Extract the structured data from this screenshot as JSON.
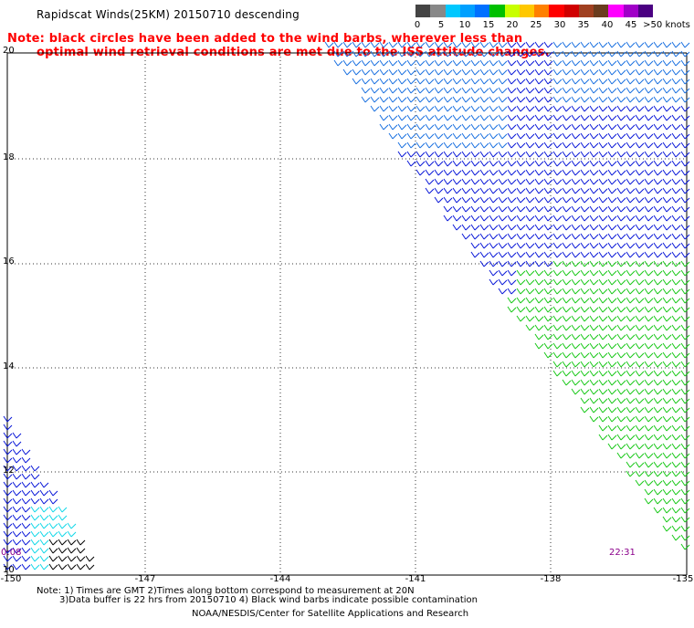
{
  "title": "Rapidscat Winds(25KM) 20150710 descending",
  "warning": {
    "line1": "Note: black circles have been added to the wind barbs, wherever less than",
    "line2": "optimal wind retrieval conditions are met due to the ISS attitude changes."
  },
  "legend": {
    "unit_label": ">50 knots",
    "ticks": [
      "0",
      "5",
      "10",
      "15",
      "20",
      "25",
      "30",
      "35",
      "40",
      "45"
    ],
    "colors": [
      "#444444",
      "#888888",
      "#00c8ff",
      "#00a0ff",
      "#0070ff",
      "#00c000",
      "#c8ff00",
      "#ffc800",
      "#ff8000",
      "#ff0000",
      "#d00000",
      "#a04020",
      "#6a3c1e",
      "#ff00ff",
      "#a000c8",
      "#4b0082"
    ]
  },
  "axes": {
    "y_labels": [
      "20",
      "18",
      "16",
      "14",
      "12",
      "10"
    ],
    "x_labels": [
      "-150",
      "-147",
      "-144",
      "-141",
      "-138",
      "-135"
    ]
  },
  "times": {
    "left": "0:08",
    "right": "22:31"
  },
  "notes": {
    "line1": "Note: 1) Times are GMT 2)Times along bottom correspond to measurement at 20N",
    "line2": "3)Data buffer is 22 hrs from 20150710 4) Black wind barbs indicate possible contamination",
    "line3": "NOAA/NESDIS/Center for Satellite Applications and Research"
  },
  "colors": {
    "barb_blue": "#0a18d8",
    "barb_steel": "#1a70e0",
    "barb_green": "#18c818",
    "barb_cyan": "#12d8e8",
    "barb_black": "#000000",
    "warning_red": "#ff0000",
    "time_purple": "#8b008b"
  }
}
